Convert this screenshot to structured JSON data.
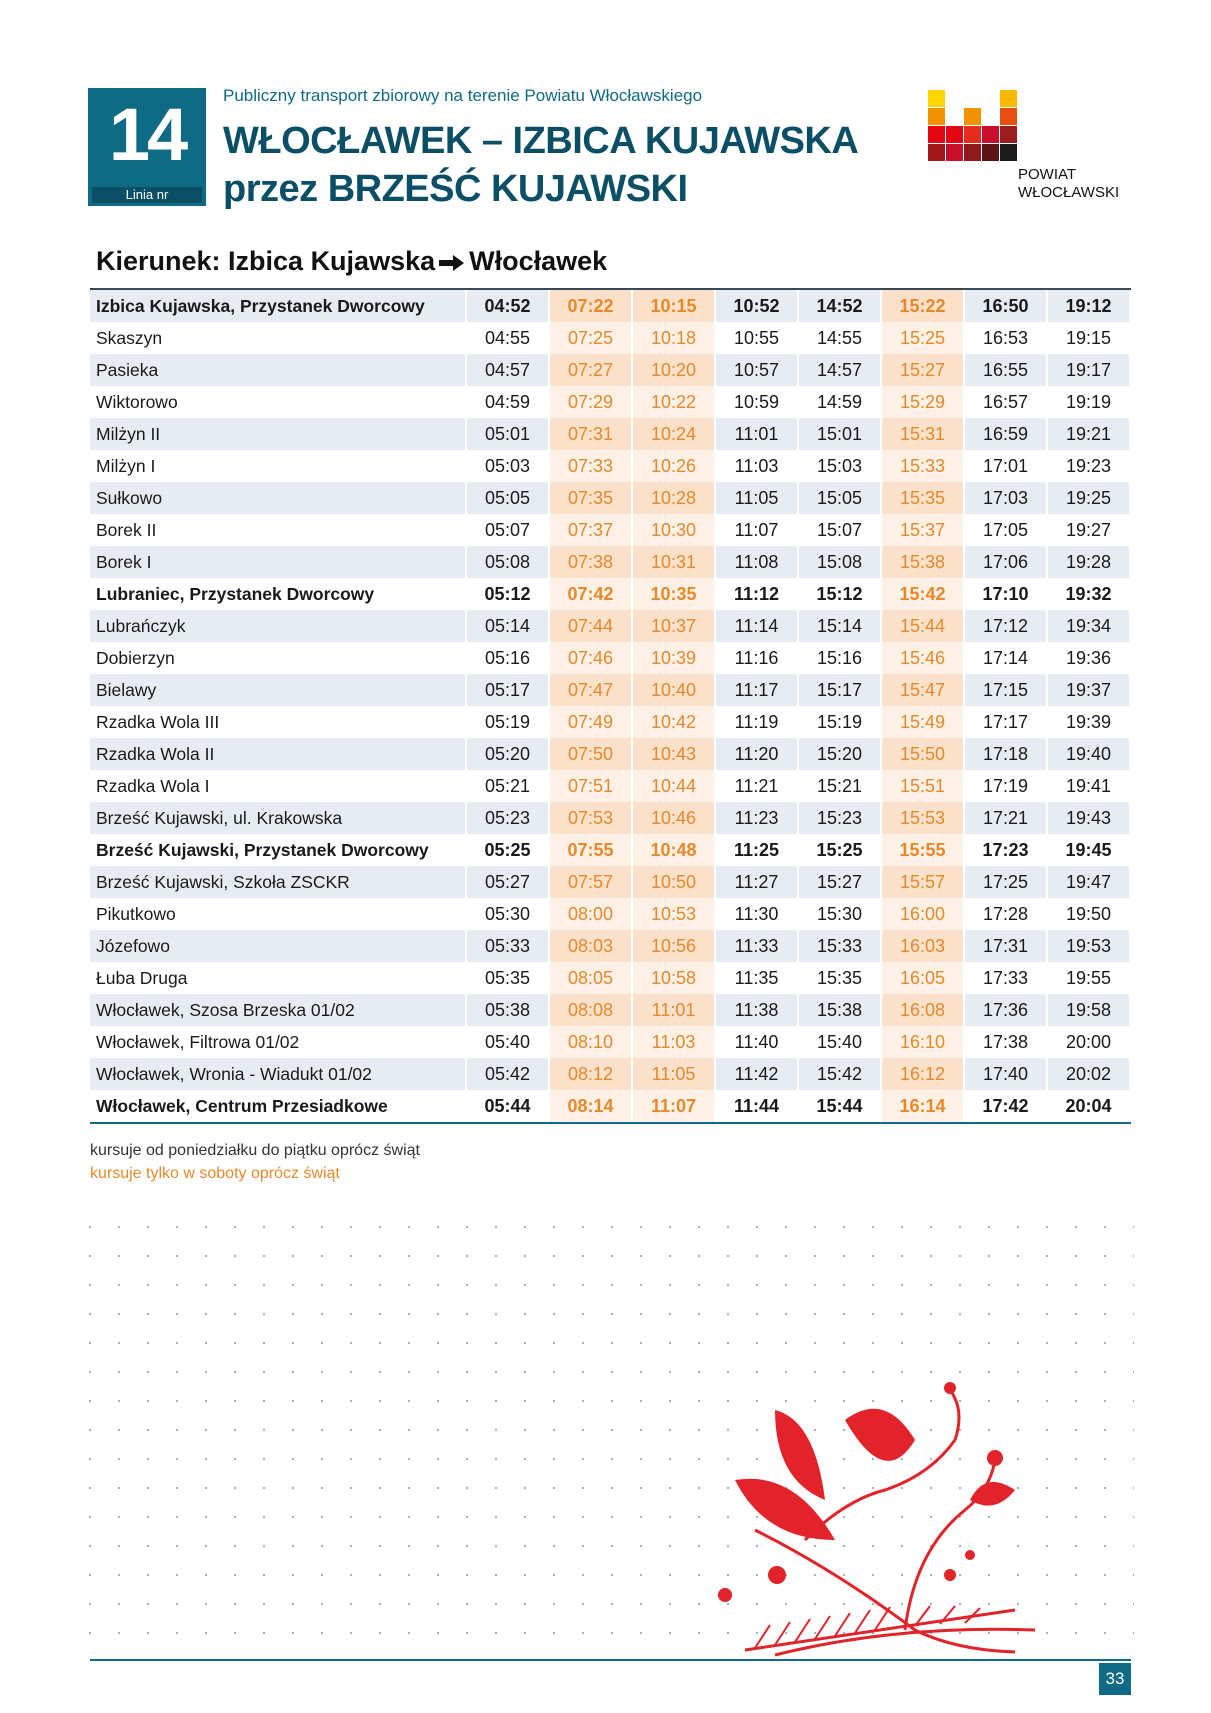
{
  "header": {
    "line_number": "14",
    "line_label": "Linia nr",
    "subtitle": "Publiczny transport zbiorowy na terenie Powiatu Włocławskiego",
    "title_line1": "WŁOCŁAWEK – IZBICA KUJAWSKA",
    "title_line2": "przez BRZEŚĆ KUJAWSKI"
  },
  "logo": {
    "line1": "POWIAT",
    "line2": "WŁOCŁAWSKI"
  },
  "direction": {
    "from": "Kierunek: Izbica Kujawska",
    "to": "Włocławek"
  },
  "table": {
    "rows": [
      [
        "Izbica Kujawska, Przystanek Dworcowy",
        "04:52",
        "07:22",
        "10:15",
        "10:52",
        "14:52",
        "15:22",
        "16:50",
        "19:12"
      ],
      [
        "Skaszyn",
        "04:55",
        "07:25",
        "10:18",
        "10:55",
        "14:55",
        "15:25",
        "16:53",
        "19:15"
      ],
      [
        "Pasieka",
        "04:57",
        "07:27",
        "10:20",
        "10:57",
        "14:57",
        "15:27",
        "16:55",
        "19:17"
      ],
      [
        "Wiktorowo",
        "04:59",
        "07:29",
        "10:22",
        "10:59",
        "14:59",
        "15:29",
        "16:57",
        "19:19"
      ],
      [
        "Milżyn II",
        "05:01",
        "07:31",
        "10:24",
        "11:01",
        "15:01",
        "15:31",
        "16:59",
        "19:21"
      ],
      [
        "Milżyn I",
        "05:03",
        "07:33",
        "10:26",
        "11:03",
        "15:03",
        "15:33",
        "17:01",
        "19:23"
      ],
      [
        "Sułkowo",
        "05:05",
        "07:35",
        "10:28",
        "11:05",
        "15:05",
        "15:35",
        "17:03",
        "19:25"
      ],
      [
        "Borek II",
        "05:07",
        "07:37",
        "10:30",
        "11:07",
        "15:07",
        "15:37",
        "17:05",
        "19:27"
      ],
      [
        "Borek I",
        "05:08",
        "07:38",
        "10:31",
        "11:08",
        "15:08",
        "15:38",
        "17:06",
        "19:28"
      ],
      [
        "Lubraniec, Przystanek Dworcowy",
        "05:12",
        "07:42",
        "10:35",
        "11:12",
        "15:12",
        "15:42",
        "17:10",
        "19:32"
      ],
      [
        "Lubrańczyk",
        "05:14",
        "07:44",
        "10:37",
        "11:14",
        "15:14",
        "15:44",
        "17:12",
        "19:34"
      ],
      [
        "Dobierzyn",
        "05:16",
        "07:46",
        "10:39",
        "11:16",
        "15:16",
        "15:46",
        "17:14",
        "19:36"
      ],
      [
        "Bielawy",
        "05:17",
        "07:47",
        "10:40",
        "11:17",
        "15:17",
        "15:47",
        "17:15",
        "19:37"
      ],
      [
        "Rzadka Wola III",
        "05:19",
        "07:49",
        "10:42",
        "11:19",
        "15:19",
        "15:49",
        "17:17",
        "19:39"
      ],
      [
        "Rzadka Wola II",
        "05:20",
        "07:50",
        "10:43",
        "11:20",
        "15:20",
        "15:50",
        "17:18",
        "19:40"
      ],
      [
        "Rzadka Wola I",
        "05:21",
        "07:51",
        "10:44",
        "11:21",
        "15:21",
        "15:51",
        "17:19",
        "19:41"
      ],
      [
        "Brześć Kujawski, ul. Krakowska",
        "05:23",
        "07:53",
        "10:46",
        "11:23",
        "15:23",
        "15:53",
        "17:21",
        "19:43"
      ],
      [
        "Brześć Kujawski, Przystanek Dworcowy",
        "05:25",
        "07:55",
        "10:48",
        "11:25",
        "15:25",
        "15:55",
        "17:23",
        "19:45"
      ],
      [
        "Brześć Kujawski, Szkoła ZSCKR",
        "05:27",
        "07:57",
        "10:50",
        "11:27",
        "15:27",
        "15:57",
        "17:25",
        "19:47"
      ],
      [
        "Pikutkowo",
        "05:30",
        "08:00",
        "10:53",
        "11:30",
        "15:30",
        "16:00",
        "17:28",
        "19:50"
      ],
      [
        "Józefowo",
        "05:33",
        "08:03",
        "10:56",
        "11:33",
        "15:33",
        "16:03",
        "17:31",
        "19:53"
      ],
      [
        "Łuba Druga",
        "05:35",
        "08:05",
        "10:58",
        "11:35",
        "15:35",
        "16:05",
        "17:33",
        "19:55"
      ],
      [
        "Włocławek, Szosa Brzeska 01/02",
        "05:38",
        "08:08",
        "11:01",
        "11:38",
        "15:38",
        "16:08",
        "17:36",
        "19:58"
      ],
      [
        "Włocławek, Filtrowa 01/02",
        "05:40",
        "08:10",
        "11:03",
        "11:40",
        "15:40",
        "16:10",
        "17:38",
        "20:00"
      ],
      [
        "Włocławek, Wronia - Wiadukt 01/02",
        "05:42",
        "08:12",
        "11:05",
        "11:42",
        "15:42",
        "16:12",
        "17:40",
        "20:02"
      ],
      [
        "Włocławek, Centrum Przesiadkowe",
        "05:44",
        "08:14",
        "11:07",
        "11:44",
        "15:44",
        "16:14",
        "17:42",
        "20:04"
      ]
    ]
  },
  "notes": [
    "kursuje od poniedziałku do piątku oprócz świąt",
    "kursuje tylko w soboty oprócz świąt"
  ],
  "page_number": "33"
}
